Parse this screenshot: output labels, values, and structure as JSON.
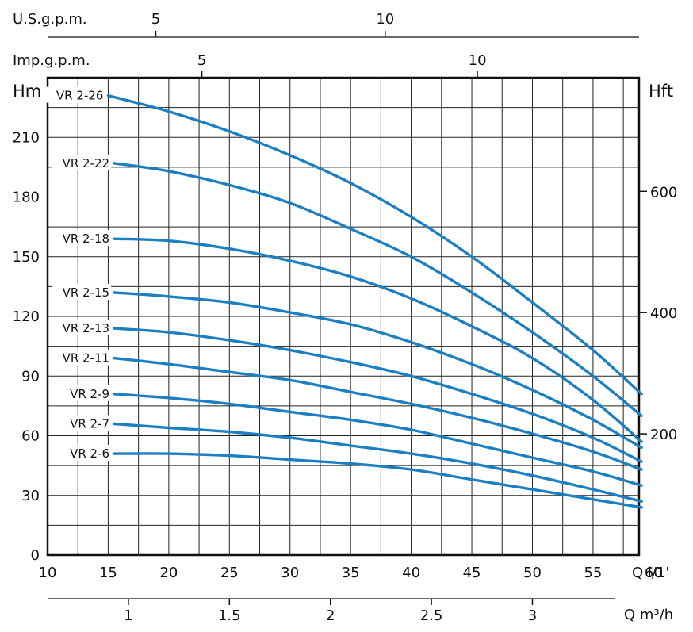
{
  "chart_data": {
    "type": "line",
    "title": "",
    "xlabel": "Q l/1'",
    "ylabel": "Hm",
    "xlim": [
      10,
      60
    ],
    "ylim": [
      0,
      240
    ],
    "grid": true,
    "line_color": "#1b7fc1",
    "left_axis": {
      "unit": "Hm",
      "ticks": [
        "0",
        "30",
        "60",
        "90",
        "120",
        "150",
        "180",
        "210"
      ],
      "values": [
        0,
        30,
        60,
        90,
        120,
        150,
        180,
        210
      ]
    },
    "right_axis": {
      "unit": "Hft",
      "ticks": [
        "200",
        "400",
        "600"
      ],
      "values": [
        200,
        400,
        600
      ]
    },
    "bottom_axis": {
      "unit": "Q l/1'",
      "ticks": [
        "10",
        "15",
        "20",
        "25",
        "30",
        "35",
        "40",
        "45",
        "50",
        "55",
        "60"
      ],
      "values": [
        10,
        15,
        20,
        25,
        30,
        35,
        40,
        45,
        50,
        55,
        60
      ]
    },
    "bottom2_axis": {
      "unit": "Q m³/h",
      "ticks": [
        "1",
        "1.5",
        "2",
        "2.5",
        "3"
      ],
      "values": [
        1,
        1.5,
        2,
        2.5,
        3
      ]
    },
    "top_axis": {
      "unit": "U.S.g.p.m.",
      "ticks": [
        "5",
        "10"
      ],
      "values": [
        5,
        10
      ]
    },
    "top2_axis": {
      "unit": "Imp.g.p.m.",
      "ticks": [
        "5",
        "10"
      ],
      "values": [
        5,
        10
      ]
    },
    "series": [
      {
        "name": "VR 2-26",
        "x": [
          15,
          20,
          25,
          30,
          35,
          40,
          45,
          50,
          55,
          59
        ],
        "y": [
          231,
          223,
          213,
          201,
          187,
          170,
          150,
          127,
          103,
          81
        ]
      },
      {
        "name": "VR 2-22",
        "x": [
          15.5,
          20,
          25,
          30,
          35,
          40,
          45,
          50,
          55,
          59
        ],
        "y": [
          197,
          193,
          186,
          177,
          164,
          150,
          132,
          112,
          90,
          70
        ]
      },
      {
        "name": "VR 2-18",
        "x": [
          15.5,
          20,
          25,
          30,
          35,
          40,
          45,
          50,
          55,
          59
        ],
        "y": [
          159,
          158,
          154,
          148,
          140,
          129,
          115,
          99,
          78,
          57
        ]
      },
      {
        "name": "VR 2-15",
        "x": [
          15.5,
          20,
          25,
          30,
          35,
          40,
          45,
          50,
          55,
          59
        ],
        "y": [
          132,
          130,
          127,
          122,
          116,
          107,
          96,
          83,
          68,
          54
        ]
      },
      {
        "name": "VR 2-13",
        "x": [
          15.5,
          20,
          25,
          30,
          35,
          40,
          45,
          50,
          55,
          59
        ],
        "y": [
          114,
          112,
          108,
          103,
          97,
          90,
          81,
          71,
          59,
          47
        ]
      },
      {
        "name": "VR 2-11",
        "x": [
          15.5,
          20,
          25,
          30,
          35,
          40,
          45,
          50,
          55,
          59
        ],
        "y": [
          99,
          96,
          92,
          88,
          82,
          76,
          69,
          61,
          52,
          43
        ]
      },
      {
        "name": "VR 2-9",
        "x": [
          15.5,
          20,
          25,
          30,
          35,
          40,
          45,
          50,
          55,
          59
        ],
        "y": [
          81,
          79,
          76,
          72,
          68,
          63,
          56,
          49,
          42,
          35
        ]
      },
      {
        "name": "VR 2-7",
        "x": [
          15.5,
          20,
          25,
          30,
          35,
          40,
          45,
          50,
          55,
          59
        ],
        "y": [
          66,
          64,
          62,
          59,
          55,
          51,
          46,
          40,
          33,
          27
        ]
      },
      {
        "name": "VR 2-6",
        "x": [
          15.5,
          20,
          25,
          30,
          35,
          40,
          45,
          50,
          55,
          59
        ],
        "y": [
          51,
          51,
          50,
          48,
          46,
          43,
          38,
          33,
          28,
          24
        ]
      }
    ]
  }
}
